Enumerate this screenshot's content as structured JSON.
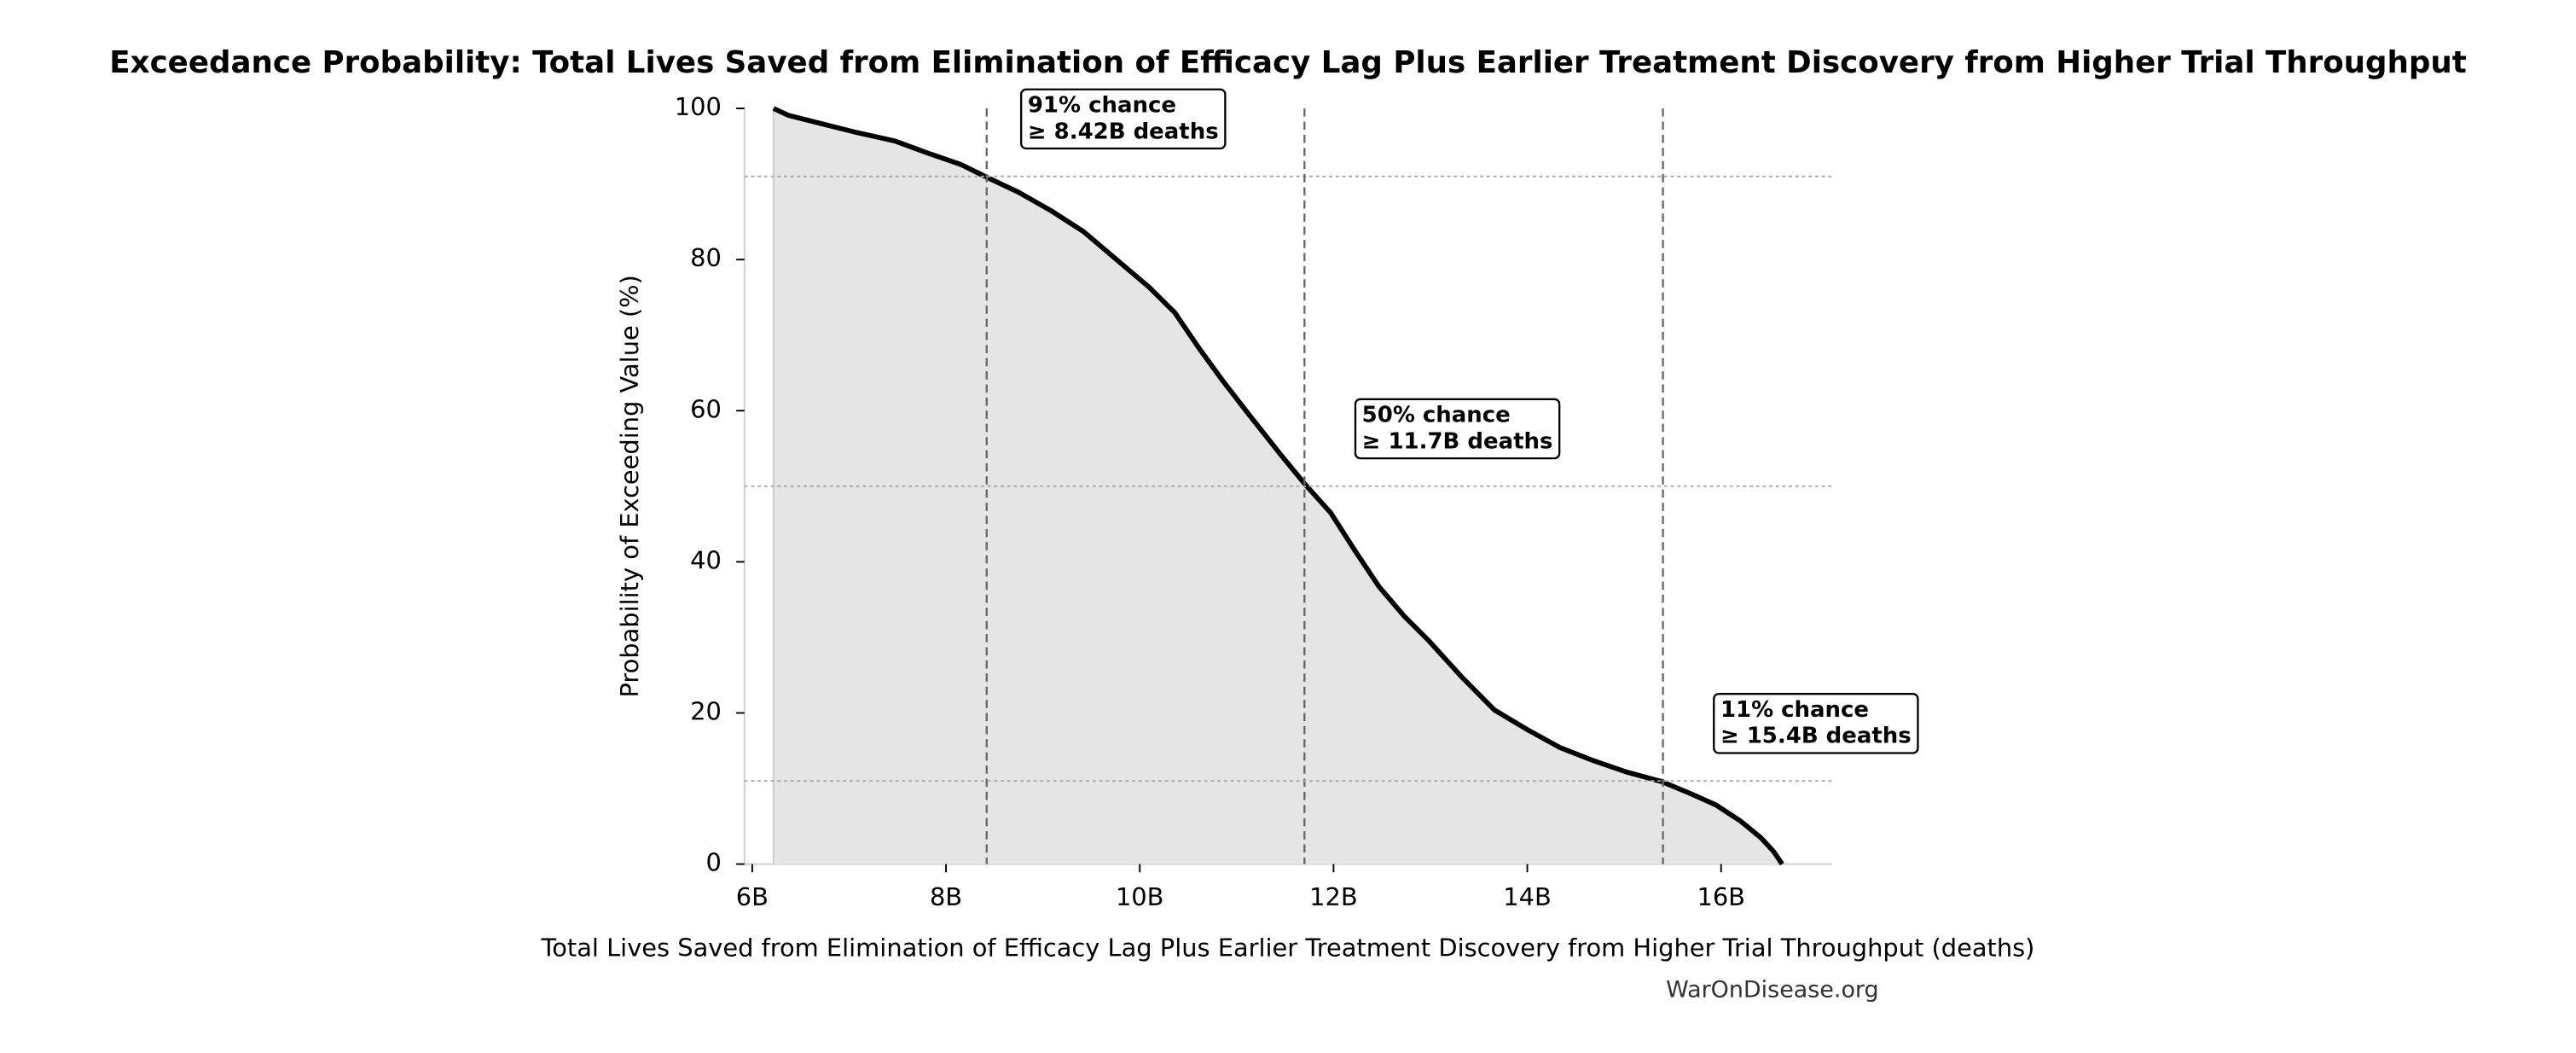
{
  "chart_data": {
    "type": "line",
    "title": "Exceedance Probability: Total Lives Saved from Elimination of Efficacy Lag Plus Earlier Treatment Discovery from Higher Trial Throughput",
    "x_label": "Total Lives Saved from Elimination of Efficacy Lag Plus Earlier Treatment Discovery from Higher Trial Throughput (deaths)",
    "y_label": "Probability of Exceeding Value (%)",
    "source": "WarOnDisease.org",
    "x": [
      6220000000,
      6370000000,
      6710000000,
      7050000000,
      7470000000,
      7810000000,
      8150000000,
      8420000000,
      8750000000,
      9080000000,
      9420000000,
      9760000000,
      10100000000,
      10360000000,
      10610000000,
      10860000000,
      11120000000,
      11460000000,
      11710000000,
      11970000000,
      12220000000,
      12470000000,
      12730000000,
      12980000000,
      13320000000,
      13660000000,
      14000000000,
      14340000000,
      14680000000,
      15020000000,
      15390000000,
      15690000000,
      15950000000,
      16200000000,
      16410000000,
      16540000000,
      16630000000
    ],
    "series": [
      {
        "name": "Exceedance probability",
        "color": "#000000",
        "fill": "#e5e5e5",
        "values": [
          100,
          99.1,
          98,
          96.9,
          95.7,
          94.1,
          92.6,
          90.9,
          88.9,
          86.5,
          83.7,
          80,
          76.3,
          73,
          68.3,
          63.9,
          59.6,
          54.1,
          50.2,
          46.5,
          41.5,
          36.7,
          32.8,
          29.6,
          24.8,
          20.4,
          17.8,
          15.4,
          13.7,
          12.2,
          10.9,
          9.3,
          7.8,
          5.7,
          3.5,
          1.7,
          0
        ]
      }
    ],
    "xlim": [
      5920000000,
      17140000000
    ],
    "ylim": [
      0,
      100
    ],
    "xticks": [
      {
        "value": 6000000000,
        "label": "6B"
      },
      {
        "value": 8000000000,
        "label": "8B"
      },
      {
        "value": 10000000000,
        "label": "10B"
      },
      {
        "value": 12000000000,
        "label": "12B"
      },
      {
        "value": 14000000000,
        "label": "14B"
      },
      {
        "value": 16000000000,
        "label": "16B"
      }
    ],
    "yticks": [
      0,
      20,
      40,
      60,
      80,
      100
    ],
    "annotations": [
      {
        "x": 8420000000,
        "y": 91,
        "lines": [
          "91% chance",
          "≥ 8.42B deaths"
        ]
      },
      {
        "x": 11700000000,
        "y": 50,
        "lines": [
          "50% chance",
          "≥ 11.7B deaths"
        ]
      },
      {
        "x": 15400000000,
        "y": 11,
        "lines": [
          "11% chance",
          "≥ 15.4B deaths"
        ]
      }
    ]
  }
}
